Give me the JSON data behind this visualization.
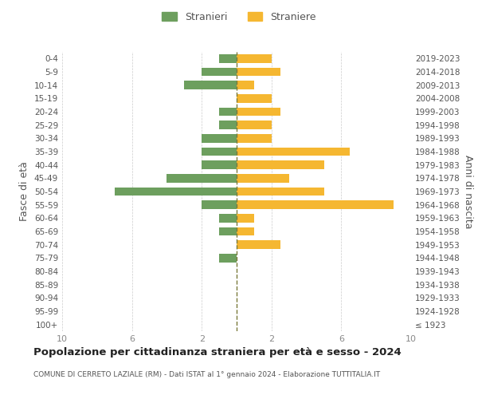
{
  "age_groups": [
    "100+",
    "95-99",
    "90-94",
    "85-89",
    "80-84",
    "75-79",
    "70-74",
    "65-69",
    "60-64",
    "55-59",
    "50-54",
    "45-49",
    "40-44",
    "35-39",
    "30-34",
    "25-29",
    "20-24",
    "15-19",
    "10-14",
    "5-9",
    "0-4"
  ],
  "birth_years": [
    "≤ 1923",
    "1924-1928",
    "1929-1933",
    "1934-1938",
    "1939-1943",
    "1944-1948",
    "1949-1953",
    "1954-1958",
    "1959-1963",
    "1964-1968",
    "1969-1973",
    "1974-1978",
    "1979-1983",
    "1984-1988",
    "1989-1993",
    "1994-1998",
    "1999-2003",
    "2004-2008",
    "2009-2013",
    "2014-2018",
    "2019-2023"
  ],
  "males": [
    0,
    0,
    0,
    0,
    0,
    1,
    0,
    1,
    1,
    2,
    7,
    4,
    2,
    2,
    2,
    1,
    1,
    0,
    3,
    2,
    1
  ],
  "females": [
    0,
    0,
    0,
    0,
    0,
    0,
    2.5,
    1,
    1,
    9,
    5,
    3,
    5,
    6.5,
    2,
    2,
    2.5,
    2,
    1,
    2.5,
    2
  ],
  "male_color": "#6d9f5e",
  "female_color": "#f5b731",
  "center_line_color": "#7a7a3a",
  "title": "Popolazione per cittadinanza straniera per età e sesso - 2024",
  "subtitle": "COMUNE DI CERRETO LAZIALE (RM) - Dati ISTAT al 1° gennaio 2024 - Elaborazione TUTTITALIA.IT",
  "ylabel": "Fasce di età",
  "right_ylabel": "Anni di nascita",
  "legend_male": "Stranieri",
  "legend_female": "Straniere",
  "xlim": 10,
  "background_color": "#ffffff",
  "grid_color": "#cccccc",
  "tick_color": "#888888",
  "label_color": "#555555"
}
